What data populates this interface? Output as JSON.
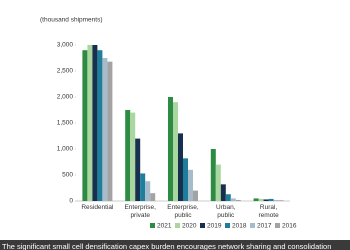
{
  "chart_data": {
    "type": "bar",
    "y_label": "(thousand shipments)",
    "categories": [
      "Residential",
      "Enterprise,\nprivate",
      "Enterprise,\npublic",
      "Urban,\npublic",
      "Rural,\nremote"
    ],
    "series": [
      {
        "name": "2021",
        "color": "#2e8b44",
        "values": [
          2900,
          1750,
          2000,
          1000,
          50
        ]
      },
      {
        "name": "2020",
        "color": "#a9d79f",
        "values": [
          3000,
          1700,
          1900,
          700,
          40
        ]
      },
      {
        "name": "2019",
        "color": "#17304d",
        "values": [
          3000,
          1200,
          1300,
          320,
          30
        ]
      },
      {
        "name": "2018",
        "color": "#1f7e9c",
        "values": [
          2900,
          530,
          820,
          130,
          40
        ]
      },
      {
        "name": "2017",
        "color": "#a7bccb",
        "values": [
          2750,
          380,
          600,
          50,
          20
        ]
      },
      {
        "name": "2016",
        "color": "#a3a3a3",
        "values": [
          2680,
          150,
          200,
          20,
          15
        ]
      }
    ],
    "ylim": [
      0,
      3000
    ],
    "yticks": [
      0,
      500,
      {
        "value": 1000,
        "label": "1,000"
      },
      {
        "value": 1500,
        "label": "1,500"
      },
      {
        "value": 2000,
        "label": "2,000"
      },
      {
        "value": 2500,
        "label": "2,500"
      },
      {
        "value": 3000,
        "label": "3,000"
      }
    ],
    "grid": false,
    "caption": "The significant small cell densification capex burden encourages network sharing and consolidation"
  }
}
